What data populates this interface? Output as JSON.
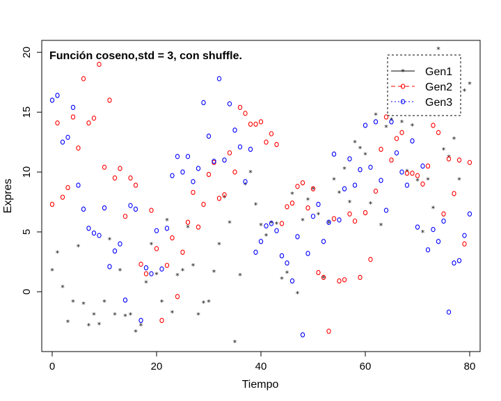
{
  "chart_data": {
    "type": "scatter",
    "title": "Función coseno,std = 3, con shuffle.",
    "xlabel": "Tiempo",
    "ylabel": "Expres",
    "xlim": [
      -2,
      82
    ],
    "ylim": [
      -5,
      21
    ],
    "xticks": [
      0,
      20,
      40,
      60,
      80
    ],
    "yticks": [
      0,
      5,
      10,
      15,
      20
    ],
    "grid": false,
    "legend_position": "top-right",
    "series": [
      {
        "name": "Gen1",
        "marker": "*",
        "line_style": "solid",
        "color": "#000000",
        "x": [
          0,
          1,
          2,
          3,
          4,
          5,
          6,
          7,
          8,
          9,
          10,
          11,
          12,
          13,
          14,
          15,
          16,
          17,
          18,
          19,
          20,
          21,
          22,
          23,
          24,
          25,
          26,
          27,
          28,
          29,
          30,
          31,
          32,
          33,
          34,
          35,
          36,
          37,
          38,
          39,
          40,
          41,
          42,
          43,
          44,
          45,
          46,
          47,
          48,
          49,
          50,
          51,
          52,
          53,
          54,
          55,
          56,
          57,
          58,
          59,
          60,
          61,
          62,
          63,
          64,
          65,
          66,
          67,
          68,
          69,
          70,
          71,
          72,
          73,
          74,
          75,
          76,
          77,
          78,
          79,
          80
        ],
        "y": [
          1.8,
          3.3,
          0.4,
          -2.5,
          -0.8,
          3.8,
          -1.0,
          -2.8,
          -1.9,
          -2.7,
          -0.8,
          4.4,
          -1.9,
          1.8,
          -2.0,
          -1.9,
          -3.3,
          -2.8,
          0.8,
          4.0,
          1.5,
          -0.8,
          6.0,
          -1.7,
          1.4,
          1.8,
          5.4,
          2.2,
          -1.9,
          -0.9,
          -0.8,
          1.7,
          4.0,
          7.9,
          5.8,
          -4.2,
          1.4,
          9.0,
          10.0,
          7.3,
          5.6,
          4.7,
          5.8,
          5.7,
          1.1,
          1.6,
          8.2,
          -0.1,
          6.0,
          7.7,
          8.6,
          6.5,
          1.2,
          5.8,
          9.4,
          8.3,
          10.3,
          7.5,
          12.5,
          12.0,
          11.5,
          7.4,
          14.8,
          5.6,
          13.8,
          14.4,
          14.8,
          14.2,
          10.1,
          13.9,
          9.3,
          5.0,
          9.4,
          7.0,
          20.3,
          11.9,
          11.3,
          12.8,
          9.4,
          16.8,
          17.4
        ]
      },
      {
        "name": "Gen2",
        "marker": "o",
        "line_style": "dashed",
        "color": "#ff0000",
        "x": [
          0,
          1,
          2,
          3,
          4,
          5,
          6,
          7,
          8,
          9,
          10,
          11,
          12,
          13,
          14,
          15,
          16,
          17,
          18,
          19,
          20,
          21,
          22,
          23,
          24,
          25,
          26,
          27,
          28,
          29,
          30,
          31,
          32,
          33,
          34,
          35,
          36,
          37,
          38,
          39,
          40,
          41,
          42,
          43,
          44,
          45,
          46,
          47,
          48,
          49,
          50,
          51,
          52,
          53,
          54,
          55,
          56,
          57,
          58,
          59,
          60,
          61,
          62,
          63,
          64,
          65,
          66,
          67,
          68,
          69,
          70,
          71,
          72,
          73,
          74,
          75,
          76,
          77,
          78,
          79,
          80
        ],
        "y": [
          7.3,
          14.1,
          7.9,
          8.7,
          14.6,
          12.0,
          17.8,
          14.1,
          14.5,
          19.0,
          10.4,
          16.0,
          9.5,
          10.3,
          6.3,
          9.5,
          8.9,
          2.3,
          1.5,
          6.8,
          3.6,
          -2.4,
          2.2,
          4.5,
          -0.4,
          3.3,
          5.8,
          8.3,
          5.4,
          7.3,
          9.8,
          10.8,
          7.8,
          8.1,
          11.6,
          10.0,
          15.4,
          14.9,
          14.0,
          14.0,
          14.2,
          12.5,
          13.2,
          12.3,
          5.7,
          7.1,
          7.4,
          8.8,
          9.1,
          7.0,
          8.6,
          1.6,
          1.2,
          -3.3,
          6.1,
          0.9,
          1.0,
          6.5,
          5.9,
          1.2,
          6.6,
          2.7,
          8.4,
          11.9,
          14.6,
          11.0,
          12.8,
          13.3,
          9.9,
          9.9,
          9.7,
          9.0,
          10.5,
          13.9,
          13.3,
          6.5,
          11.1,
          8.2,
          11.0,
          4.0,
          10.8
        ]
      },
      {
        "name": "Gen3",
        "marker": "o",
        "line_style": "dotted",
        "color": "#0000ff",
        "x": [
          0,
          1,
          2,
          3,
          4,
          5,
          6,
          7,
          8,
          9,
          10,
          11,
          12,
          13,
          14,
          15,
          16,
          17,
          18,
          19,
          20,
          21,
          22,
          23,
          24,
          25,
          26,
          27,
          28,
          29,
          30,
          31,
          32,
          33,
          34,
          35,
          36,
          37,
          38,
          39,
          40,
          41,
          42,
          43,
          44,
          45,
          46,
          47,
          48,
          49,
          50,
          51,
          52,
          53,
          54,
          55,
          56,
          57,
          58,
          59,
          60,
          61,
          62,
          63,
          64,
          65,
          66,
          67,
          68,
          69,
          70,
          71,
          72,
          73,
          74,
          75,
          76,
          77,
          78,
          79,
          80
        ],
        "y": [
          16.0,
          16.4,
          12.5,
          12.9,
          15.4,
          8.9,
          6.9,
          5.3,
          4.9,
          4.7,
          7.0,
          2.1,
          3.4,
          4.0,
          -0.7,
          7.2,
          6.9,
          -2.4,
          2.0,
          1.5,
          5.1,
          1.9,
          5.3,
          9.7,
          11.3,
          10.0,
          11.3,
          9.2,
          10.3,
          15.8,
          13.0,
          10.9,
          17.8,
          11.0,
          15.7,
          13.5,
          12.1,
          9.2,
          11.9,
          3.3,
          4.2,
          5.5,
          5.7,
          5.1,
          3.0,
          2.4,
          0.9,
          4.6,
          -3.6,
          3.2,
          6.3,
          7.3,
          4.2,
          5.8,
          11.5,
          6.0,
          8.6,
          11.1,
          8.9,
          10.2,
          13.9,
          10.4,
          14.2,
          9.3,
          6.8,
          14.2,
          11.6,
          10.0,
          8.9,
          12.6,
          5.4,
          10.5,
          3.5,
          5.2,
          4.2,
          5.9,
          -1.7,
          2.4,
          2.6,
          4.7,
          6.5
        ]
      }
    ]
  }
}
